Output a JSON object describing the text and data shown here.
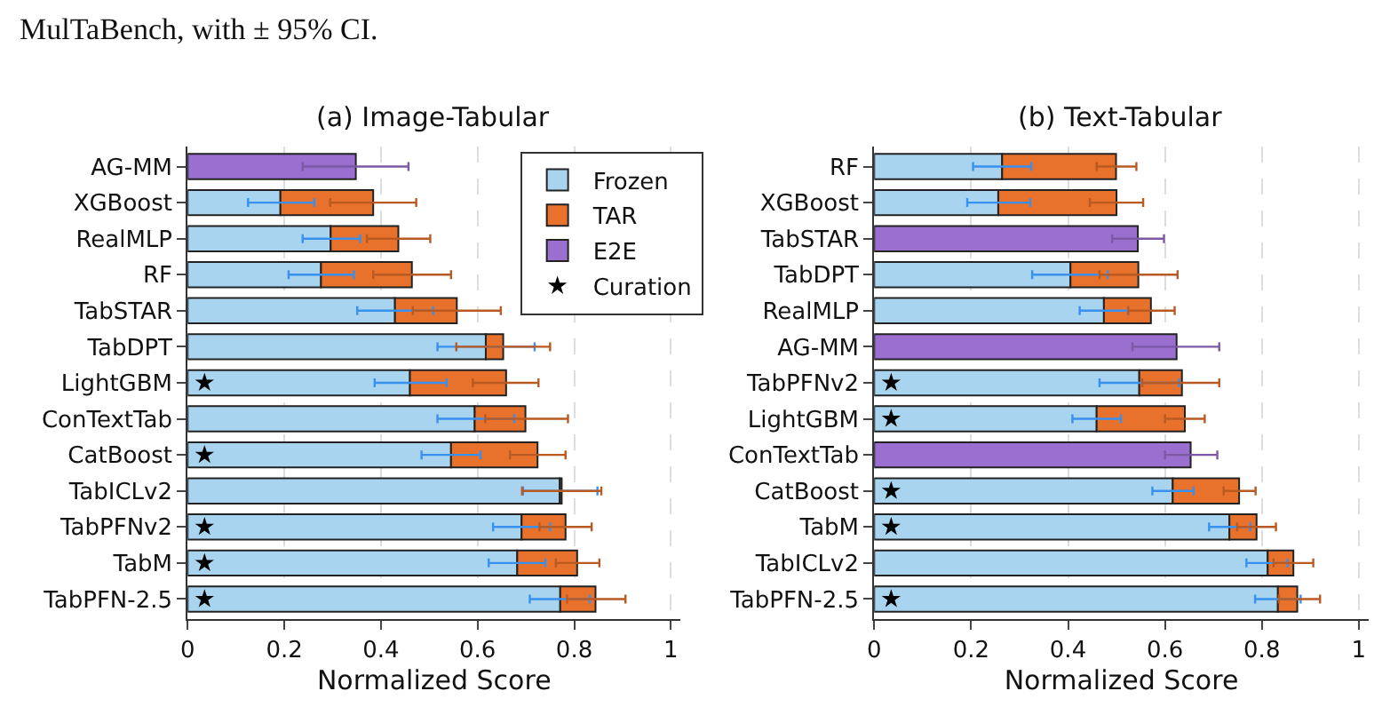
{
  "chart_data": [
    {
      "type": "bar",
      "orientation": "horizontal",
      "stacked": true,
      "title": "(a) Image-Tabular",
      "xlabel": "Normalized Score",
      "annotations": [
        "MulTaBench, with ± 95% CI."
      ],
      "categories": [
        "AG-MM",
        "XGBoost",
        "RealMLP",
        "RF",
        "TabSTAR",
        "TabDPT",
        "LightGBM",
        "ConTextTab",
        "CatBoost",
        "TabICLv2",
        "TabPFNv2",
        "TabM",
        "TabPFN-2.5"
      ],
      "xlim": [
        0,
        1.02
      ],
      "xticks": [
        0,
        0.2,
        0.4,
        0.6,
        0.8,
        1
      ],
      "grid": "x",
      "legend": "top right",
      "series": [
        {
          "name": "Frozen",
          "color": "#a8d4ef",
          "values": [
            null,
            0.192,
            0.296,
            0.276,
            0.429,
            0.617,
            0.46,
            0.594,
            0.545,
            0.77,
            0.691,
            0.682,
            0.771
          ],
          "errors": [
            null,
            [
              0.125,
              0.262
            ],
            [
              0.238,
              0.357
            ],
            [
              0.209,
              0.344
            ],
            [
              0.351,
              0.508
            ],
            [
              0.517,
              0.718
            ],
            [
              0.387,
              0.536
            ],
            [
              0.517,
              0.676
            ],
            [
              0.484,
              0.606
            ],
            [
              0.694,
              0.848
            ],
            [
              0.632,
              0.75
            ],
            [
              0.623,
              0.74
            ],
            [
              0.708,
              0.832
            ]
          ]
        },
        {
          "name": "TAR",
          "color": "#e8712b",
          "values": [
            null,
            0.192,
            0.14,
            0.188,
            0.128,
            0.036,
            0.199,
            0.105,
            0.179,
            0.004,
            0.091,
            0.124,
            0.073
          ],
          "errors": [
            null,
            [
              0.295,
              0.473
            ],
            [
              0.371,
              0.502
            ],
            [
              0.384,
              0.545
            ],
            [
              0.466,
              0.648
            ],
            [
              0.556,
              0.75
            ],
            [
              0.59,
              0.726
            ],
            [
              0.616,
              0.787
            ],
            [
              0.667,
              0.782
            ],
            [
              0.692,
              0.856
            ],
            [
              0.728,
              0.836
            ],
            [
              0.762,
              0.852
            ],
            [
              0.785,
              0.906
            ]
          ]
        },
        {
          "name": "E2E",
          "color": "#9b6fcf",
          "values": [
            0.348,
            null,
            null,
            null,
            null,
            null,
            null,
            null,
            null,
            null,
            null,
            null,
            null
          ],
          "errors": [
            [
              0.238,
              0.457
            ],
            null,
            null,
            null,
            null,
            null,
            null,
            null,
            null,
            null,
            null,
            null,
            null
          ]
        },
        {
          "name": "Curation",
          "type": "scatter",
          "marker": "star",
          "color": "#000000",
          "values": [
            null,
            null,
            null,
            null,
            null,
            null,
            0.035,
            null,
            0.035,
            null,
            0.035,
            0.035,
            0.035
          ]
        }
      ]
    },
    {
      "type": "bar",
      "orientation": "horizontal",
      "stacked": true,
      "title": "(b) Text-Tabular",
      "xlabel": "Normalized Score",
      "categories": [
        "RF",
        "XGBoost",
        "TabSTAR",
        "TabDPT",
        "RealMLP",
        "AG-MM",
        "TabPFNv2",
        "LightGBM",
        "ConTextTab",
        "CatBoost",
        "TabM",
        "TabICLv2",
        "TabPFN-2.5"
      ],
      "xlim": [
        0,
        1.02
      ],
      "xticks": [
        0,
        0.2,
        0.4,
        0.6,
        0.8,
        1
      ],
      "grid": "x",
      "legend": false,
      "series": [
        {
          "color": "#a8d4ef",
          "values": [
            0.264,
            0.256,
            null,
            0.405,
            0.474,
            null,
            0.547,
            0.459,
            null,
            0.616,
            0.733,
            0.812,
            0.833
          ],
          "errors": [
            [
              0.204,
              0.324
            ],
            [
              0.192,
              0.322
            ],
            null,
            [
              0.326,
              0.482
            ],
            [
              0.424,
              0.524
            ],
            null,
            [
              0.465,
              0.629
            ],
            [
              0.409,
              0.509
            ],
            null,
            [
              0.574,
              0.659
            ],
            [
              0.691,
              0.776
            ],
            [
              0.768,
              0.853
            ],
            [
              0.786,
              0.88
            ]
          ]
        },
        {
          "color": "#e8712b",
          "values": [
            0.235,
            0.244,
            null,
            0.14,
            0.097,
            null,
            0.088,
            0.182,
            null,
            0.137,
            0.056,
            0.053,
            0.04
          ],
          "errors": [
            [
              0.459,
              0.541
            ],
            [
              0.445,
              0.555
            ],
            null,
            [
              0.465,
              0.626
            ],
            [
              0.524,
              0.62
            ],
            null,
            [
              0.553,
              0.712
            ],
            [
              0.6,
              0.682
            ],
            null,
            [
              0.721,
              0.787
            ],
            [
              0.749,
              0.829
            ],
            [
              0.824,
              0.906
            ],
            [
              0.835,
              0.92
            ]
          ]
        },
        {
          "color": "#9b6fcf",
          "values": [
            null,
            null,
            0.544,
            null,
            null,
            0.624,
            null,
            null,
            0.653,
            null,
            null,
            null,
            null
          ],
          "errors": [
            null,
            null,
            [
              0.491,
              0.598
            ],
            null,
            null,
            [
              0.533,
              0.712
            ],
            null,
            null,
            [
              0.6,
              0.708
            ],
            null,
            null,
            null,
            null
          ]
        },
        {
          "type": "scatter",
          "marker": "star",
          "color": "#000000",
          "values": [
            null,
            null,
            null,
            null,
            null,
            null,
            0.035,
            0.035,
            null,
            0.035,
            0.035,
            null,
            0.035
          ]
        }
      ]
    }
  ]
}
